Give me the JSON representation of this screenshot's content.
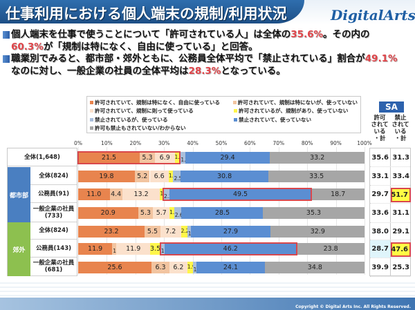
{
  "header": {
    "title": "仕事利用における個人端末の規制/利用状況",
    "logo": "DigitalArts",
    "logo_mark": "®"
  },
  "summary": {
    "bullet1": {
      "p1": "個人端末を仕事で使うことについて「許可されている人」は全体の",
      "v1": "35.6%",
      "p2": "。その内の",
      "v2": "60.3%",
      "p3": "が「規制は特になく、自由に使っている」と回答。"
    },
    "bullet2": {
      "p1": "職業別でみると、都市部・郊外ともに、公務員全体平均で「禁止されている」割合が",
      "v1": "49.1%",
      "p2": "なのに対し、一般企業の社員の全体平均は",
      "v2": "28.3%",
      "p3": "となっている。"
    }
  },
  "sa": {
    "badge": "SA",
    "col1_header": [
      "許可",
      "されて",
      "いる",
      "・計"
    ],
    "col2_header": [
      "禁止",
      "されて",
      "いる",
      "・計"
    ]
  },
  "colors": {
    "accent": "#2d62ad",
    "highlight_border": "#d9474c",
    "highlight_fill": "#ffff44",
    "urban": "#4a7fc1",
    "suburban": "#8dc04f"
  },
  "groups": [
    {
      "label": "都市部",
      "color": "#4a7fc1",
      "rows": [
        1,
        2,
        3
      ]
    },
    {
      "label": "郊外",
      "color": "#8dc04f",
      "rows": [
        4,
        5,
        6
      ]
    }
  ],
  "chart_data": {
    "type": "bar",
    "stacked": true,
    "orientation": "horizontal",
    "title": "仕事利用における個人端末の規制/利用状況",
    "xlabel": "",
    "ylabel": "",
    "xlim": [
      0,
      100
    ],
    "x_ticks": [
      "0%",
      "10%",
      "20%",
      "30%",
      "40%",
      "50%",
      "60%",
      "70%",
      "80%",
      "90%",
      "100%"
    ],
    "legend_position": "top",
    "categories": [
      {
        "label": "全体(1,648)",
        "sub": ""
      },
      {
        "label": "全体(824)",
        "sub": "",
        "group": "都市部"
      },
      {
        "label": "公務員(91)",
        "sub": "",
        "group": "都市部"
      },
      {
        "label": "一般企業の社員",
        "sub": "(733)",
        "group": "都市部"
      },
      {
        "label": "全体(824)",
        "sub": "",
        "group": "郊外"
      },
      {
        "label": "公務員(143)",
        "sub": "",
        "group": "郊外"
      },
      {
        "label": "一般企業の社員",
        "sub": "(681)",
        "group": "郊外"
      }
    ],
    "series": [
      {
        "name": "許可されていて、規制は特になく、自由に使っている",
        "color": "#e8844e",
        "values": [
          21.5,
          19.8,
          11.0,
          20.9,
          23.2,
          11.9,
          25.6
        ]
      },
      {
        "name": "許可されていて、規制は特にないが、使っていない",
        "color": "#f2c4a0",
        "values": [
          5.3,
          5.2,
          4.4,
          5.3,
          5.5,
          1.4,
          6.3
        ]
      },
      {
        "name": "許可されていて、規制に則って使っている",
        "color": "#fbe1cc",
        "values": [
          6.9,
          6.6,
          13.2,
          5.7,
          7.2,
          11.9,
          6.2
        ]
      },
      {
        "name": "許可されているが、規制があり、使っていない",
        "color": "#fff64a",
        "values": [
          1.9,
          1.6,
          1.1,
          1.6,
          2.2,
          3.5,
          1.9
        ]
      },
      {
        "name": "禁止されているが、使っている",
        "color": "#a9bfdc",
        "values": [
          1.9,
          2.5,
          2.2,
          2.6,
          1.2,
          1.4,
          1.2
        ]
      },
      {
        "name": "禁止されていて、使っていない",
        "color": "#5b8ed2",
        "values": [
          29.4,
          30.8,
          49.5,
          28.5,
          27.9,
          46.2,
          24.1
        ]
      },
      {
        "name": "許可も禁止もされていない/わからない",
        "color": "#a6a6a6",
        "values": [
          33.2,
          33.5,
          18.7,
          35.3,
          32.9,
          23.8,
          34.8
        ]
      }
    ],
    "side_table": {
      "columns": [
        "許可されている・計",
        "禁止されている・計"
      ],
      "permitted_total": [
        35.6,
        33.1,
        29.7,
        33.6,
        38.0,
        28.7,
        39.9
      ],
      "prohibited_total": [
        31.3,
        33.4,
        51.7,
        31.1,
        29.1,
        47.6,
        25.3
      ],
      "highlighted_prohibited": [
        2,
        5
      ]
    },
    "highlighted_bars": [
      {
        "row": 0,
        "series_from": 0,
        "series_to": 3
      },
      {
        "row": 2,
        "series_from": 4,
        "series_to": 5
      },
      {
        "row": 5,
        "series_from": 4,
        "series_to": 5
      }
    ]
  },
  "footer": {
    "copyright": "Copyright © Digital Arts Inc. All Rights Reserved."
  }
}
